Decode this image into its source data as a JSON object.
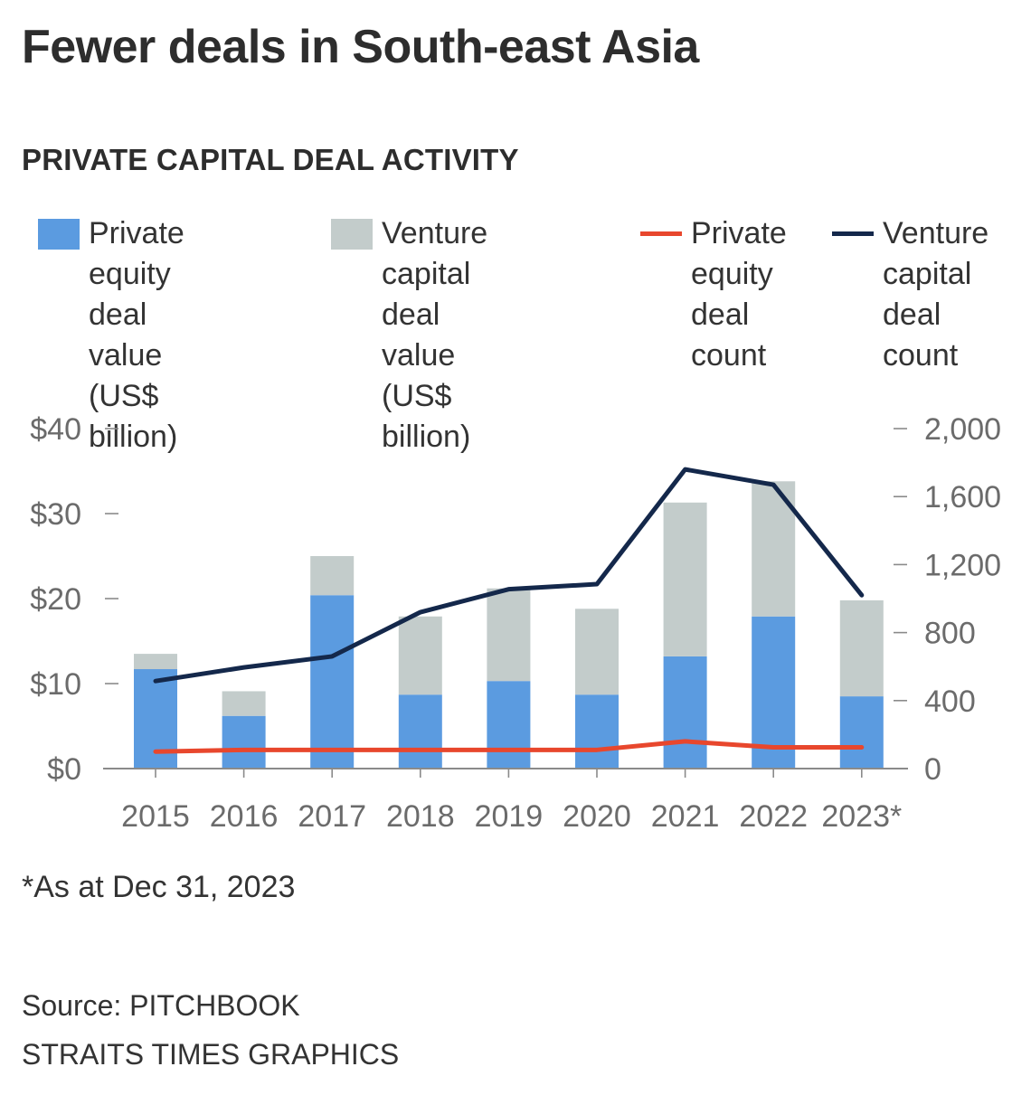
{
  "title": "Fewer deals in South-east Asia",
  "subtitle": "PRIVATE CAPITAL DEAL ACTIVITY",
  "legend": [
    {
      "label": "Private equity\ndeal value\n(US$ billion)",
      "kind": "box",
      "color": "#5b9be0"
    },
    {
      "label": "Venture capital\ndeal value\n(US$ billion)",
      "kind": "box",
      "color": "#c3cccb"
    },
    {
      "label": "Private\nequity\ndeal\ncount",
      "kind": "line",
      "color": "#e8472d"
    },
    {
      "label": "Venture\ncapital\ndeal\ncount",
      "kind": "line",
      "color": "#14284b"
    }
  ],
  "footnote": "*As at Dec 31, 2023",
  "source": "Source: PITCHBOOK",
  "credit": "STRAITS TIMES GRAPHICS",
  "chart_data": {
    "type": "bar",
    "stacked": true,
    "categories": [
      "2015",
      "2016",
      "2017",
      "2018",
      "2019",
      "2020",
      "2021",
      "2022",
      "2023*"
    ],
    "series": [
      {
        "name": "Private equity deal value (US$ billion)",
        "axis": "left",
        "kind": "bar",
        "color": "#5b9be0",
        "values": [
          11.7,
          6.2,
          20.4,
          8.7,
          10.3,
          8.7,
          13.2,
          17.9,
          8.5
        ]
      },
      {
        "name": "Venture capital deal value (US$ billion)",
        "axis": "left",
        "kind": "bar",
        "color": "#c3cccb",
        "values": [
          1.8,
          2.9,
          4.6,
          9.2,
          10.9,
          10.1,
          18.1,
          15.9,
          11.3
        ]
      },
      {
        "name": "Private equity deal count",
        "axis": "right",
        "kind": "line",
        "color": "#e8472d",
        "values": [
          100,
          110,
          110,
          110,
          110,
          110,
          160,
          125,
          125
        ]
      },
      {
        "name": "Venture capital deal count",
        "axis": "right",
        "kind": "line",
        "color": "#14284b",
        "values": [
          515,
          595,
          660,
          920,
          1055,
          1085,
          1760,
          1670,
          1020
        ]
      }
    ],
    "left_axis": {
      "ylim": [
        0,
        40
      ],
      "ticks": [
        0,
        10,
        20,
        30,
        40
      ],
      "tick_labels": [
        "$0",
        "$10",
        "$20",
        "$30",
        "$40"
      ]
    },
    "right_axis": {
      "ylim": [
        0,
        2000
      ],
      "ticks": [
        0,
        400,
        800,
        1200,
        1600,
        2000
      ],
      "tick_labels": [
        "0",
        "400",
        "800",
        "1,200",
        "1,600",
        "2,000"
      ]
    },
    "grid": false
  }
}
